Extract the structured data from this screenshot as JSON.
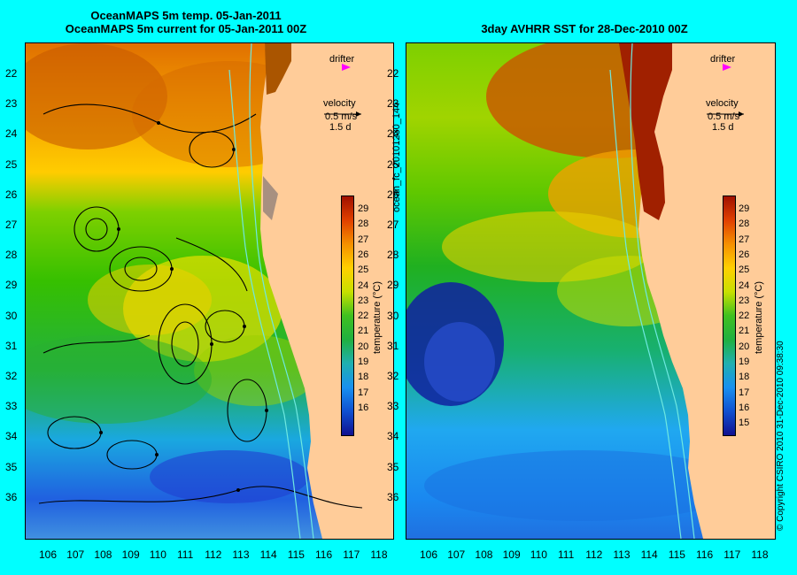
{
  "left_panel": {
    "title_line1": "OceanMAPS 5m temp. 05-Jan-2011",
    "title_line2": "OceanMAPS 5m current for 05-Jan-2011 00Z",
    "drifter_label": "drifter",
    "velocity_label": "velocity",
    "speed_label": "0.5 m/s",
    "duration_label": "1.5 d",
    "colorbar_label": "temperature (°C)",
    "colorbar_ticks": [
      "29",
      "28",
      "27",
      "26",
      "25",
      "24",
      "23",
      "22",
      "21",
      "20",
      "19",
      "18",
      "17",
      "16"
    ]
  },
  "right_panel": {
    "title": "3day AVHRR SST for 28-Dec-2010 00Z",
    "drifter_label": "drifter",
    "velocity_label": "velocity",
    "speed_label": "0.5 m/s",
    "duration_label": "1.5 d",
    "colorbar_label": "temperature (°C)",
    "colorbar_ticks": [
      "29",
      "28",
      "27",
      "26",
      "25",
      "24",
      "23",
      "22",
      "21",
      "20",
      "19",
      "18",
      "17",
      "16",
      "15"
    ]
  },
  "center_vertical_label": "ocean_fc_20101230_144",
  "right_vertical_label": "© Copyright CSIRO 2010   31-Dec-2010 09:38:30",
  "lat_ticks": [
    "22",
    "23",
    "24",
    "25",
    "26",
    "27",
    "28",
    "29",
    "30",
    "31",
    "32",
    "33",
    "34",
    "35",
    "36"
  ],
  "lon_ticks": [
    "106",
    "107",
    "108",
    "109",
    "110",
    "111",
    "112",
    "113",
    "114",
    "115",
    "116",
    "117",
    "118"
  ],
  "colors": {
    "background": "#00ffff",
    "land": "#ffcc99",
    "drifter_marker": "#ff00ff"
  }
}
